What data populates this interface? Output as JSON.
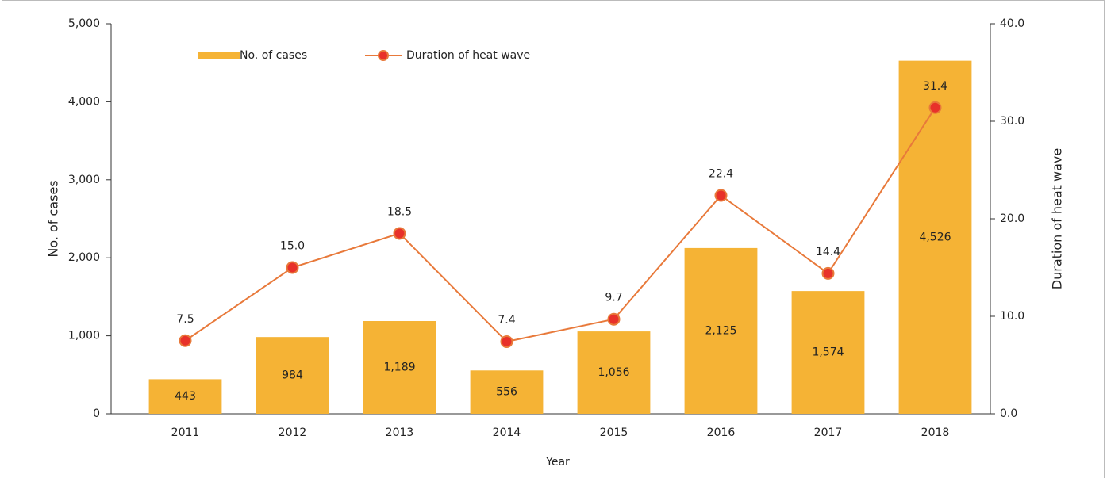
{
  "chart_data": {
    "type": "bar-line",
    "categories": [
      "2011",
      "2012",
      "2013",
      "2014",
      "2015",
      "2016",
      "2017",
      "2018"
    ],
    "x_label": "Year",
    "y_label": "No. of cases",
    "y2_label": "Duration of heat wave",
    "series": [
      {
        "name": "No. of cases",
        "type": "bar",
        "color": "#f5b335",
        "values": [
          443,
          984,
          1189,
          556,
          1056,
          2125,
          1574,
          4526
        ],
        "value_labels": [
          "443",
          "984",
          "1,189",
          "556",
          "1,056",
          "2,125",
          "1,574",
          "4,526"
        ]
      },
      {
        "name": "Duration of heat wave",
        "type": "line",
        "axis": "y2",
        "color": "#e8793a",
        "marker_color": "#e8312a",
        "values": [
          7.5,
          15.0,
          18.5,
          7.4,
          9.7,
          22.4,
          14.4,
          31.4
        ],
        "value_labels": [
          "7.5",
          "15.0",
          "18.5",
          "7.4",
          "9.7",
          "22.4",
          "14.4",
          "31.4"
        ]
      }
    ],
    "ylim": [
      0,
      5000
    ],
    "yticks": [
      0,
      {
        "value": 1000,
        "label": "1,000"
      },
      {
        "value": 2000,
        "label": "2,000"
      },
      {
        "value": 3000,
        "label": "3,000"
      },
      {
        "value": 4000,
        "label": "4,000"
      },
      {
        "value": 5000,
        "label": "5,000"
      }
    ],
    "y2lim": [
      0,
      40
    ],
    "y2ticks": [
      {
        "value": 0,
        "label": "0.0"
      },
      {
        "value": 10,
        "label": "10.0"
      },
      {
        "value": 20,
        "label": "20.0"
      },
      {
        "value": 30,
        "label": "30.0"
      },
      {
        "value": 40,
        "label": "40.0"
      }
    ],
    "legend": "top-left",
    "grid": false
  }
}
